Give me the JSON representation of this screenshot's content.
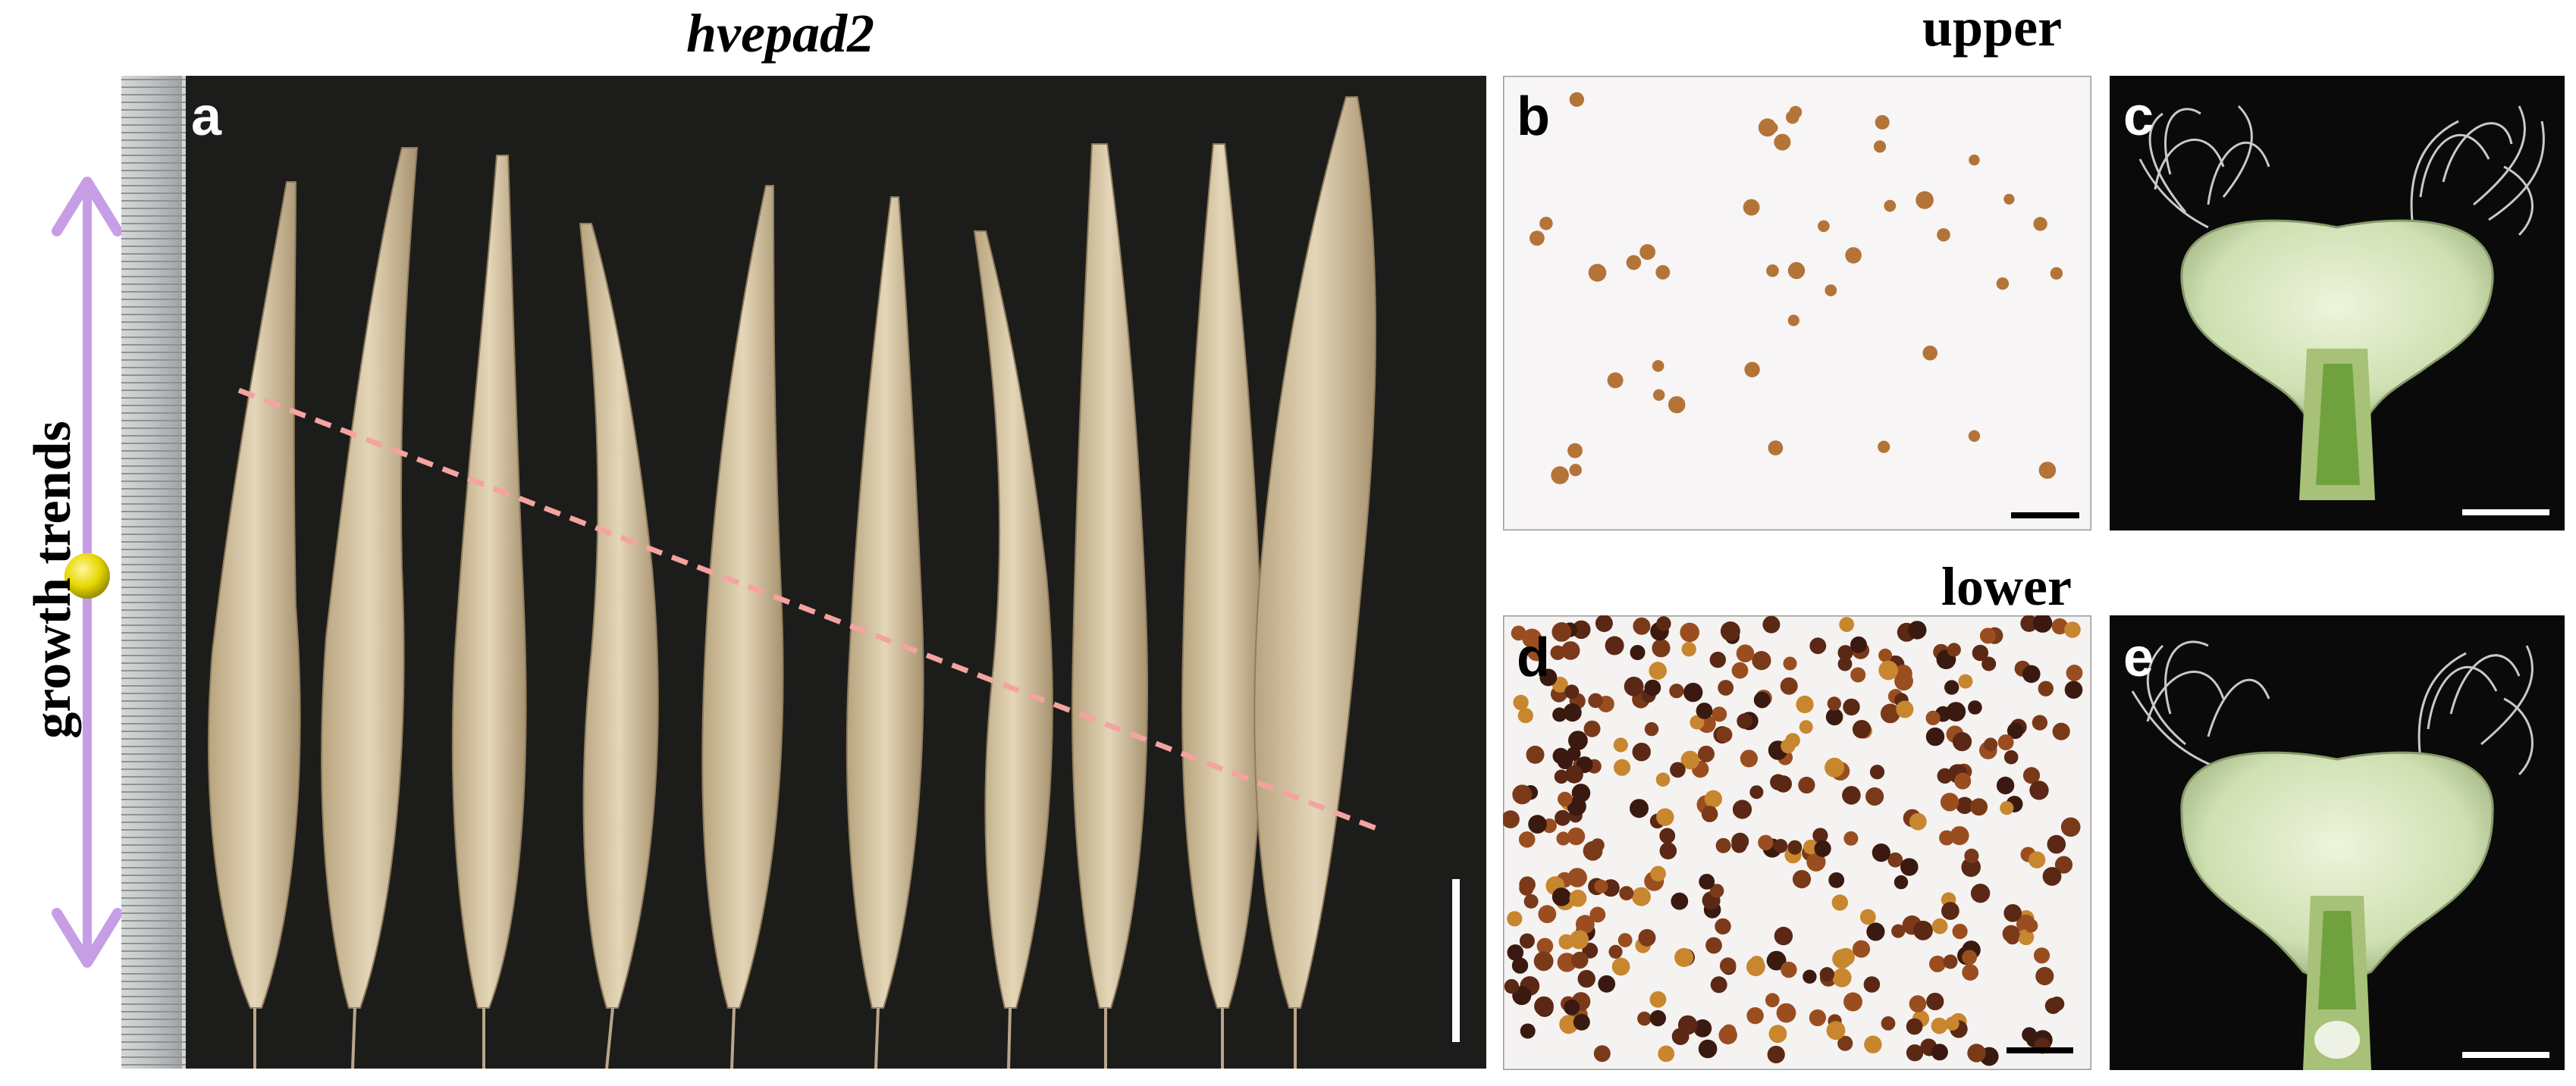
{
  "figure": {
    "title": "hvepad2",
    "side_label": "growth trends",
    "labels": {
      "a": "a",
      "b": "b",
      "c": "c",
      "d": "d",
      "e": "e"
    },
    "upper_label": "upper",
    "lower_label": "lower"
  },
  "colors": {
    "background_dark": "#1c1c1b",
    "spike": "#d8c7a4",
    "dashed_line": "#f4a3a0",
    "arrow": "#c79ee6",
    "dot": "#e6d600",
    "pollen_light": "#b47438",
    "pollen_dark": "#5a2814",
    "floret": "#cfe0b2"
  },
  "icons": {
    "growth_arrow": "double-headed-arrow-icon",
    "growth_dot": "circle-marker-icon"
  }
}
